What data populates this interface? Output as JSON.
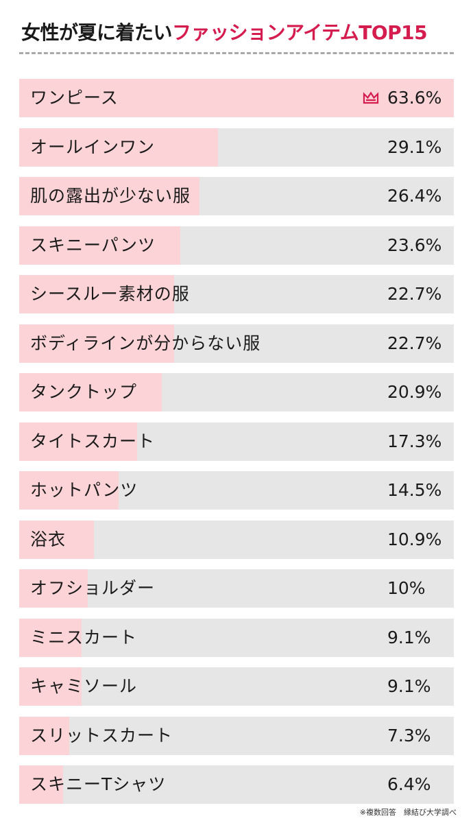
{
  "title": {
    "prefix": "女性が夏に着たい",
    "highlight": "ファッションアイテムTOP15"
  },
  "colors": {
    "accent": "#d41c4f",
    "bar_fill": "#fcd3d7",
    "bar_track": "#e6e6e6"
  },
  "icons": {
    "top_rank": "crown-icon"
  },
  "chart_data": {
    "type": "bar",
    "orientation": "horizontal",
    "unit": "%",
    "xlim": [
      0,
      63.6
    ],
    "categories": [
      "ワンピース",
      "オールインワン",
      "肌の露出が少ない服",
      "スキニーパンツ",
      "シースルー素材の服",
      "ボディラインが分からない服",
      "タンクトップ",
      "タイトスカート",
      "ホットパンツ",
      "浴衣",
      "オフショルダー",
      "ミニスカート",
      "キャミソール",
      "スリットスカート",
      "スキニーTシャツ"
    ],
    "values": [
      63.6,
      29.1,
      26.4,
      23.6,
      22.7,
      22.7,
      20.9,
      17.3,
      14.5,
      10.9,
      10,
      9.1,
      9.1,
      7.3,
      6.4
    ],
    "value_labels": [
      "63.6%",
      "29.1%",
      "26.4%",
      "23.6%",
      "22.7%",
      "22.7%",
      "20.9%",
      "17.3%",
      "14.5%",
      "10.9%",
      "10%",
      "9.1%",
      "9.1%",
      "7.3%",
      "6.4%"
    ]
  },
  "footnote": "※複数回答　縁結び大学調べ"
}
